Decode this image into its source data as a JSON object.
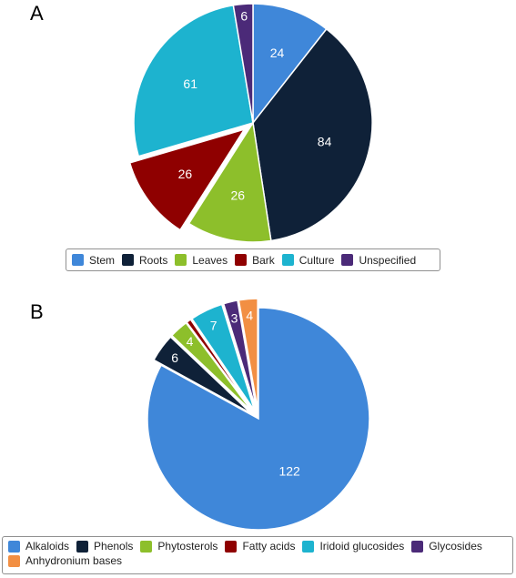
{
  "chart_data": [
    {
      "panel": "A",
      "type": "pie",
      "categories": [
        "Stem",
        "Roots",
        "Leaves",
        "Bark",
        "Culture",
        "Unspecified"
      ],
      "values": [
        24,
        84,
        26,
        26,
        61,
        6
      ],
      "colors": [
        "#3f87d9",
        "#0f2138",
        "#8dbf2b",
        "#8f0000",
        "#1db3cf",
        "#4b2a78"
      ],
      "exploded": [
        "Bark"
      ],
      "legend_position": "bottom"
    },
    {
      "panel": "B",
      "type": "pie",
      "categories": [
        "Alkaloids",
        "Phenols",
        "Phytosterols",
        "Fatty acids",
        "Iridoid glucosides",
        "Glycosides",
        "Anhydronium bases"
      ],
      "values": [
        122,
        6,
        4,
        1,
        7,
        3,
        4
      ],
      "labels": [
        "122",
        "6",
        "4",
        "",
        "7",
        "3",
        "4"
      ],
      "colors": [
        "#3f87d9",
        "#0f2138",
        "#8dbf2b",
        "#8f0000",
        "#1db3cf",
        "#4b2a78",
        "#f28f43"
      ],
      "exploded": [
        "Phenols",
        "Phytosterols",
        "Fatty acids",
        "Iridoid glucosides",
        "Glycosides",
        "Anhydronium bases"
      ],
      "legend_position": "bottom"
    }
  ]
}
